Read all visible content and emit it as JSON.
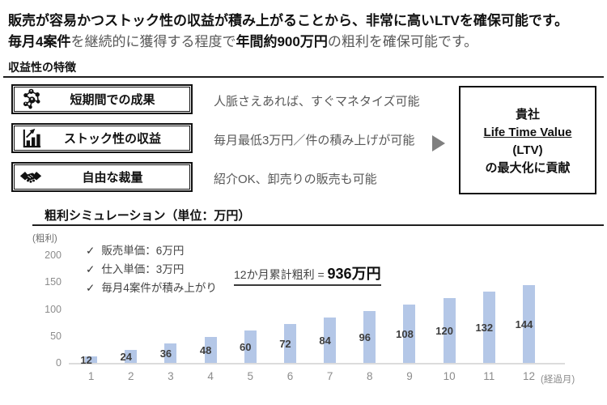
{
  "header": {
    "line1": "販売が容易かつストック性の収益が積み上がることから、非常に高いLTVを確保可能です。",
    "line2_segments": [
      {
        "text": "毎月4案件",
        "emphasis": true
      },
      {
        "text": "を継続的に獲得する程度で",
        "emphasis": false
      },
      {
        "text": "年間約900万円",
        "emphasis": true
      },
      {
        "text": "の粗利を確保可能です。",
        "emphasis": false
      }
    ]
  },
  "section": {
    "title": "収益性の特徴"
  },
  "features": [
    {
      "icon": "network-icon",
      "label": "短期間での成果",
      "description": "人脈さえあれば、すぐマネタイズ可能"
    },
    {
      "icon": "bar-chart-icon",
      "label": "ストック性の収益",
      "description": "毎月最低3万円／件の積み上げが可能"
    },
    {
      "icon": "handshake-icon",
      "label": "自由な裁量",
      "description": "紹介OK、卸売りの販売も可能"
    }
  ],
  "ltv_box": {
    "line1": "貴社",
    "line2": "Life Time Value",
    "line3": "(LTV)",
    "line4": "の最大化に貢献"
  },
  "chart": {
    "title": "粗利シミュレーション（単位：万円）",
    "y_axis_caption": "(粗利)",
    "x_axis_suffix": "(経過月)",
    "notes": [
      "販売単価：6万円",
      "仕入単価：3万円",
      "毎月4案件が積み上がり"
    ],
    "check_glyph": "✓",
    "summary_prefix": "12か月累計粗利 = ",
    "summary_value": "936万円"
  },
  "chart_data": {
    "type": "bar",
    "title": "粗利シミュレーション（単位：万円）",
    "categories": [
      "1",
      "2",
      "3",
      "4",
      "5",
      "6",
      "7",
      "8",
      "9",
      "10",
      "11",
      "12"
    ],
    "values": [
      12,
      24,
      36,
      48,
      60,
      72,
      84,
      96,
      108,
      120,
      132,
      144
    ],
    "xlabel": "経過月",
    "ylabel": "粗利",
    "ylim": [
      0,
      200
    ],
    "yticks": [
      0,
      50,
      100,
      150,
      200
    ],
    "grid": false,
    "legend": false,
    "bar_color": "#b4c7e7",
    "data_label_position": "center"
  },
  "colors": {
    "bar_fill": "#b4c7e7",
    "accent_dark": "#111111",
    "gray_text": "#595959",
    "axis_gray": "#8c8c8c",
    "arrow_gray": "#7f7f7f"
  }
}
